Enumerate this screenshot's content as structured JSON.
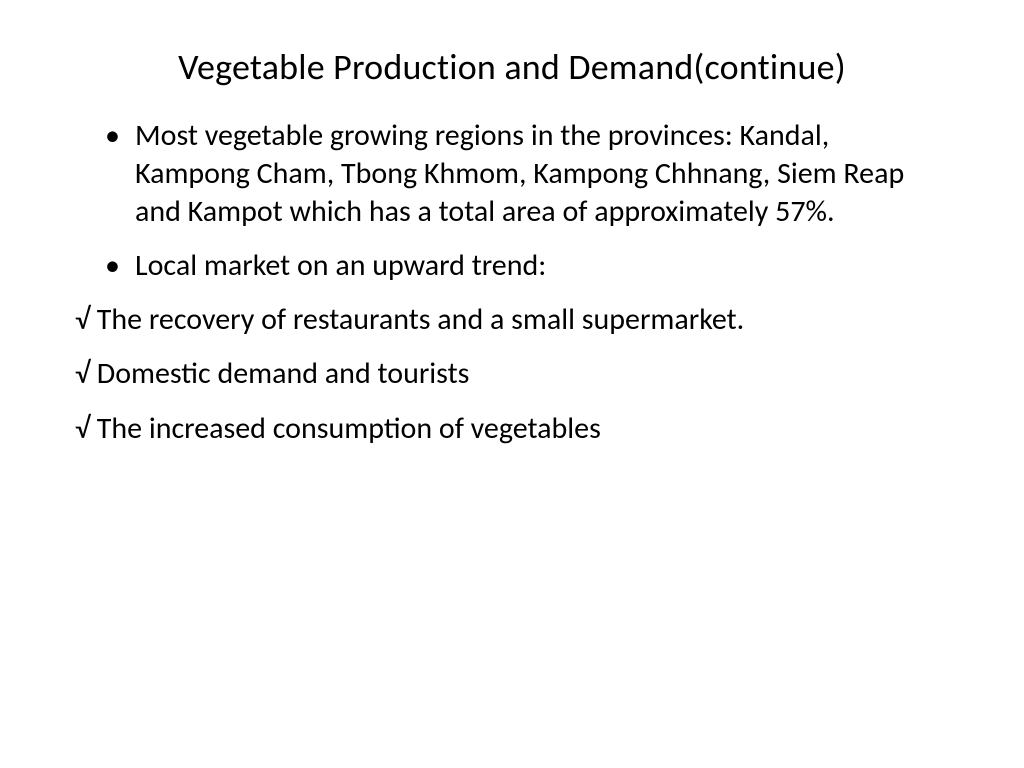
{
  "slide": {
    "title": "Vegetable Production and Demand(continue)",
    "bullets": [
      {
        "text": "Most vegetable growing regions in the provinces: Kandal, Kampong Cham, Tbong Khmom, Kampong Chhnang, Siem Reap and Kampot which has a total area of approximately 57%."
      },
      {
        "text": "Local market on an upward trend:"
      }
    ],
    "checks": [
      {
        "marker": "√",
        "text": " The recovery of restaurants and a small supermarket."
      },
      {
        "marker": "√",
        "text": " Domestic demand and tourists"
      },
      {
        "marker": "√",
        "text": " The increased consumption of vegetables"
      }
    ],
    "styling": {
      "background_color": "#ffffff",
      "text_color": "#000000",
      "title_fontsize": 36,
      "body_fontsize": 30,
      "font_family": "Calibri",
      "bullet_char": "•",
      "check_char": "√"
    }
  }
}
